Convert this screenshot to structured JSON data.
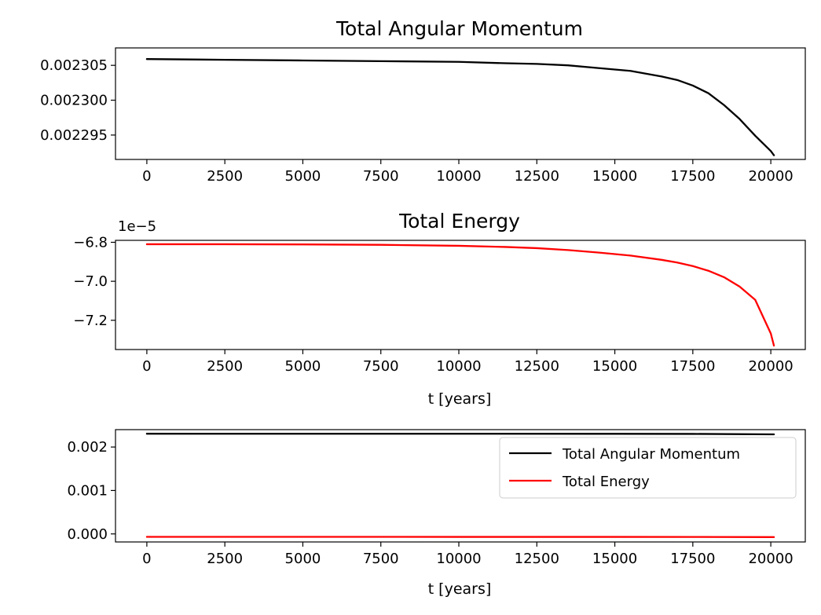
{
  "chart_data": [
    {
      "type": "line",
      "title": "Total Angular Momentum",
      "xlabel": "",
      "ylabel": "",
      "offset_text": "",
      "xlim": [
        -1005,
        21105
      ],
      "ylim": [
        0.0022915,
        0.0023075
      ],
      "xticks": [
        0,
        2500,
        5000,
        7500,
        10000,
        12500,
        15000,
        17500,
        20000
      ],
      "xtick_labels": [
        "0",
        "2500",
        "5000",
        "7500",
        "10000",
        "12500",
        "15000",
        "17500",
        "20000"
      ],
      "yticks": [
        0.002305,
        0.0023,
        0.002295
      ],
      "ytick_labels": [
        "0.002305",
        "0.002300",
        "0.002295"
      ],
      "grid": false,
      "series": [
        {
          "color": "#000000",
          "x": [
            0,
            2500,
            5000,
            7500,
            10000,
            11500,
            12500,
            13500,
            14500,
            15500,
            16500,
            17000,
            17500,
            18000,
            18500,
            19000,
            19500,
            20000,
            20100
          ],
          "y": [
            0.0023059,
            0.0023058,
            0.0023057,
            0.0023056,
            0.0023055,
            0.0023053,
            0.0023052,
            0.002305,
            0.0023046,
            0.0023042,
            0.0023034,
            0.0023029,
            0.0023021,
            0.002301,
            0.0022993,
            0.0022973,
            0.0022949,
            0.0022927,
            0.0022921
          ]
        }
      ]
    },
    {
      "type": "line",
      "title": "Total Energy",
      "xlabel": "t [years]",
      "ylabel": "",
      "offset_text": "1e−5",
      "xlim": [
        -1005,
        21105
      ],
      "ylim": [
        -7.35,
        -6.79
      ],
      "xticks": [
        0,
        2500,
        5000,
        7500,
        10000,
        12500,
        15000,
        17500,
        20000
      ],
      "xtick_labels": [
        "0",
        "2500",
        "5000",
        "7500",
        "10000",
        "12500",
        "15000",
        "17500",
        "20000"
      ],
      "yticks": [
        -6.8,
        -7.0,
        -7.2
      ],
      "ytick_labels": [
        "−6.8",
        "−7.0",
        "−7.2"
      ],
      "grid": false,
      "series": [
        {
          "color": "#ff0000",
          "x": [
            0,
            2500,
            5000,
            7500,
            10000,
            11500,
            12500,
            13500,
            14500,
            15500,
            16500,
            17000,
            17500,
            18000,
            18500,
            19000,
            19500,
            20000,
            20100
          ],
          "y": [
            -6.81,
            -6.81,
            -6.811,
            -6.813,
            -6.818,
            -6.824,
            -6.83,
            -6.84,
            -6.853,
            -6.868,
            -6.89,
            -6.904,
            -6.922,
            -6.946,
            -6.979,
            -7.027,
            -7.095,
            -7.268,
            -7.33
          ]
        }
      ]
    },
    {
      "type": "line",
      "title": "",
      "xlabel": "t [years]",
      "ylabel": "",
      "offset_text": "",
      "xlim": [
        -1005,
        21105
      ],
      "ylim": [
        -0.000185,
        0.0024
      ],
      "xticks": [
        0,
        2500,
        5000,
        7500,
        10000,
        12500,
        15000,
        17500,
        20000
      ],
      "xtick_labels": [
        "0",
        "2500",
        "5000",
        "7500",
        "10000",
        "12500",
        "15000",
        "17500",
        "20000"
      ],
      "yticks": [
        0.002,
        0.001,
        0.0
      ],
      "ytick_labels": [
        "0.002",
        "0.001",
        "0.000"
      ],
      "grid": false,
      "legend_position": "top-right",
      "series": [
        {
          "name": "Total Angular Momentum",
          "color": "#000000",
          "x": [
            0,
            5000,
            10000,
            15000,
            17500,
            20100
          ],
          "y": [
            0.0023059,
            0.0023057,
            0.0023055,
            0.0023042,
            0.0023021,
            0.0022921
          ]
        },
        {
          "name": "Total Energy",
          "color": "#ff0000",
          "x": [
            0,
            5000,
            10000,
            15000,
            17500,
            20100
          ],
          "y": [
            -6.81e-05,
            -6.81e-05,
            -6.82e-05,
            -6.86e-05,
            -6.92e-05,
            -7.33e-05
          ]
        }
      ]
    }
  ]
}
